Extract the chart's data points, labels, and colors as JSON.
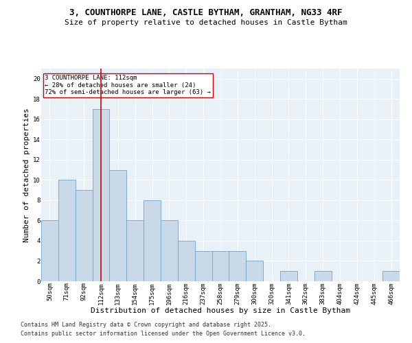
{
  "title_line1": "3, COUNTHORPE LANE, CASTLE BYTHAM, GRANTHAM, NG33 4RF",
  "title_line2": "Size of property relative to detached houses in Castle Bytham",
  "xlabel": "Distribution of detached houses by size in Castle Bytham",
  "ylabel": "Number of detached properties",
  "categories": [
    "50sqm",
    "71sqm",
    "92sqm",
    "112sqm",
    "133sqm",
    "154sqm",
    "175sqm",
    "196sqm",
    "216sqm",
    "237sqm",
    "258sqm",
    "279sqm",
    "300sqm",
    "320sqm",
    "341sqm",
    "362sqm",
    "383sqm",
    "404sqm",
    "424sqm",
    "445sqm",
    "466sqm"
  ],
  "values": [
    6,
    10,
    9,
    17,
    11,
    6,
    8,
    6,
    4,
    3,
    3,
    3,
    2,
    0,
    1,
    0,
    1,
    0,
    0,
    0,
    1
  ],
  "bar_color": "#c9d9e8",
  "bar_edge_color": "#6da4cc",
  "highlight_index": 3,
  "highlight_line_color": "#cc0000",
  "annotation_text": "3 COUNTHORPE LANE: 112sqm\n← 28% of detached houses are smaller (24)\n72% of semi-detached houses are larger (63) →",
  "annotation_box_color": "#ffffff",
  "annotation_box_edge": "#cc0000",
  "ylim": [
    0,
    21
  ],
  "yticks": [
    0,
    2,
    4,
    6,
    8,
    10,
    12,
    14,
    16,
    18,
    20
  ],
  "background_color": "#e8f0f8",
  "footer_line1": "Contains HM Land Registry data © Crown copyright and database right 2025.",
  "footer_line2": "Contains public sector information licensed under the Open Government Licence v3.0.",
  "title_fontsize": 9,
  "subtitle_fontsize": 8,
  "axis_label_fontsize": 8,
  "tick_fontsize": 6.5,
  "annotation_fontsize": 6.5,
  "footer_fontsize": 6
}
